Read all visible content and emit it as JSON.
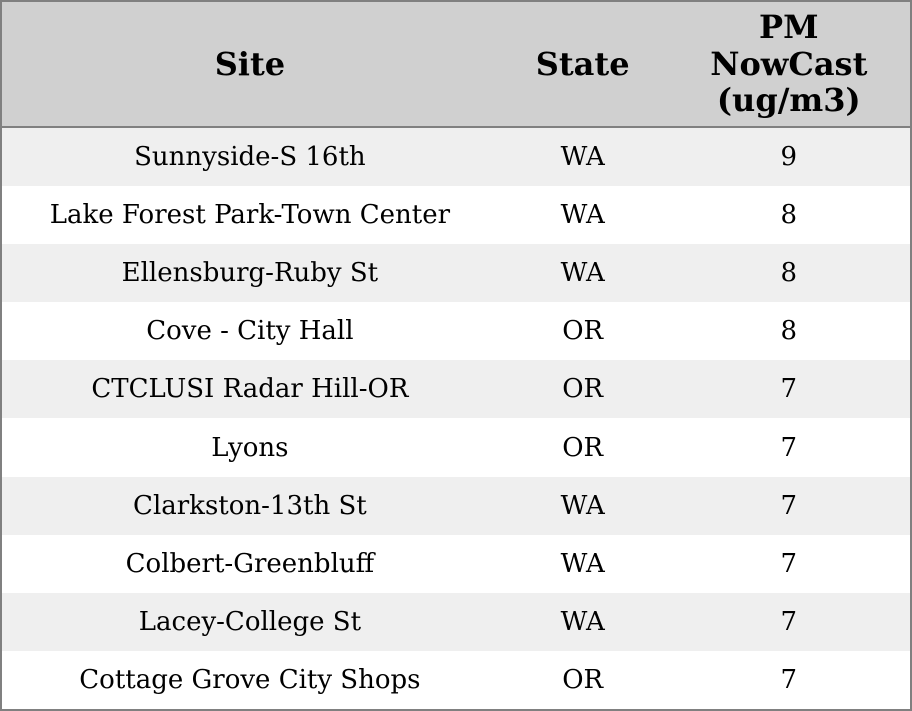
{
  "chart_data": {
    "type": "table",
    "title": "",
    "columns": [
      "Site",
      "State",
      "PM NowCast (ug/m3)"
    ],
    "rows": [
      [
        "Sunnyside-S 16th",
        "WA",
        9
      ],
      [
        "Lake Forest Park-Town Center",
        "WA",
        8
      ],
      [
        "Ellensburg-Ruby St",
        "WA",
        8
      ],
      [
        "Cove - City Hall",
        "OR",
        8
      ],
      [
        "CTCLUSI Radar Hill-OR",
        "OR",
        7
      ],
      [
        "Lyons",
        "OR",
        7
      ],
      [
        "Clarkston-13th St",
        "WA",
        7
      ],
      [
        "Colbert-Greenbluff",
        "WA",
        7
      ],
      [
        "Lacey-College St",
        "WA",
        7
      ],
      [
        "Cottage Grove City Shops",
        "OR",
        7
      ]
    ],
    "layout": {
      "striped_rows": true,
      "alignment": "center",
      "grid": false
    }
  },
  "table": {
    "header_labels": {
      "site": "Site",
      "state": "State",
      "pm": "PM\nNowCast\n(ug/m3)"
    }
  },
  "colors": {
    "header_bg": "#d0d0d0",
    "border": "#808080",
    "row_alt_bg": "#efefef",
    "row_bg": "#ffffff",
    "text": "#000000"
  }
}
